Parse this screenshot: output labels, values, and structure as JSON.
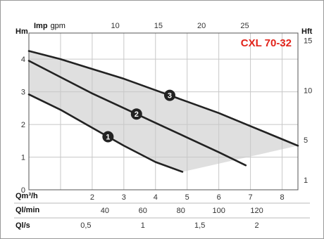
{
  "chart_data": {
    "type": "line",
    "title": "CXL 70-32",
    "title_color": "#e2231a",
    "area_color": "#d4d4d4",
    "curve_color": "#222222",
    "grid": true,
    "xlim": [
      0,
      8.5
    ],
    "ylim": [
      0,
      4.8
    ],
    "left_axis": {
      "unit": "Hm",
      "ticks": [
        "0",
        "1",
        "2",
        "3",
        "4"
      ],
      "tick_values": [
        0,
        1,
        2,
        3,
        4
      ]
    },
    "right_axis": {
      "unit": "Hft",
      "ticks": [
        "1",
        "5",
        "10",
        "15"
      ],
      "tick_values": [
        1,
        5,
        10,
        15
      ]
    },
    "top_axis": {
      "unit_bold": "Imp",
      "unit_light": "gpm",
      "ticks": [
        "10",
        "15",
        "20",
        "25"
      ],
      "tick_values": [
        10,
        15,
        20,
        25
      ]
    },
    "bottom_axes": [
      {
        "unit": "Qm³/h",
        "ticks": [
          "2",
          "3",
          "4",
          "5",
          "6",
          "7",
          "8"
        ],
        "tick_values": [
          2,
          3,
          4,
          5,
          6,
          7,
          8
        ]
      },
      {
        "unit": "Ql/min",
        "ticks": [
          "40",
          "60",
          "80",
          "100",
          "120"
        ],
        "tick_values": [
          40,
          60,
          80,
          100,
          120
        ]
      },
      {
        "unit": "Ql/s",
        "ticks": [
          "0,5",
          "1",
          "1,5",
          "2"
        ],
        "tick_values": [
          0.5,
          1,
          1.5,
          2
        ]
      }
    ],
    "series": [
      {
        "name": "1",
        "x": [
          0.0,
          1.0,
          2.0,
          3.0,
          4.0,
          4.85
        ],
        "y": [
          2.92,
          2.45,
          1.9,
          1.35,
          0.85,
          0.55
        ]
      },
      {
        "name": "2",
        "x": [
          0.0,
          1.0,
          2.0,
          3.0,
          4.0,
          5.0,
          6.0,
          6.85
        ],
        "y": [
          3.95,
          3.45,
          2.95,
          2.5,
          2.05,
          1.6,
          1.15,
          0.75
        ]
      },
      {
        "name": "3",
        "x": [
          0.0,
          1.0,
          2.0,
          3.0,
          4.0,
          5.0,
          6.0,
          7.0,
          8.0,
          8.5
        ],
        "y": [
          4.25,
          4.0,
          3.7,
          3.4,
          3.05,
          2.7,
          2.35,
          1.95,
          1.55,
          1.35
        ]
      }
    ],
    "series_markers_x": [
      2.5,
      3.4,
      4.45
    ]
  }
}
